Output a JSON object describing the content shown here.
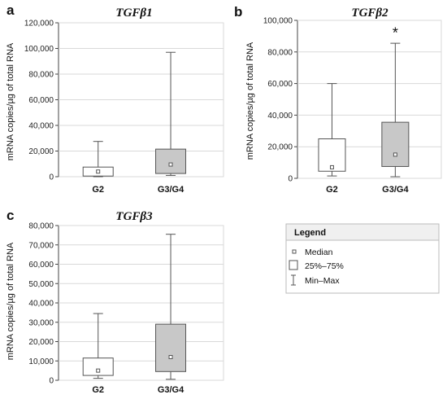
{
  "chart_data": [
    {
      "panel": "a",
      "type": "box",
      "title": "TGFβ1",
      "ylabel": "mRNA copies/µg of total RNA",
      "ylim": [
        0,
        120000
      ],
      "y_ticks": [
        "0",
        "20,000",
        "40,000",
        "60,000",
        "80,000",
        "100,000",
        "120,000"
      ],
      "y_tick_values": [
        0,
        20000,
        40000,
        60000,
        80000,
        100000,
        120000
      ],
      "categories": [
        "G2",
        "G3/G4"
      ],
      "boxes": [
        {
          "category": "G2",
          "min": 0,
          "q1": 500,
          "median": 4000,
          "q3": 7500,
          "max": 27500,
          "fill": "#ffffff"
        },
        {
          "category": "G3/G4",
          "min": 1000,
          "q1": 2500,
          "median": 9500,
          "q3": 21500,
          "max": 97000,
          "fill": "#c8c8c8"
        }
      ],
      "annotations": []
    },
    {
      "panel": "b",
      "type": "box",
      "title": "TGFβ2",
      "ylabel": "mRNA copies/µg of total RNA",
      "ylim": [
        0,
        100000
      ],
      "y_ticks": [
        "0",
        "20,000",
        "40,000",
        "60,000",
        "80,000",
        "100,000"
      ],
      "y_tick_values": [
        0,
        20000,
        40000,
        60000,
        80000,
        100000
      ],
      "categories": [
        "G2",
        "G3/G4"
      ],
      "boxes": [
        {
          "category": "G2",
          "min": 1500,
          "q1": 4500,
          "median": 7000,
          "q3": 25000,
          "max": 60000,
          "fill": "#ffffff"
        },
        {
          "category": "G3/G4",
          "min": 1000,
          "q1": 7500,
          "median": 15000,
          "q3": 35500,
          "max": 85500,
          "fill": "#c8c8c8"
        }
      ],
      "annotations": [
        {
          "text": "*",
          "category": "G3/G4",
          "y": 92000
        }
      ]
    },
    {
      "panel": "c",
      "type": "box",
      "title": "TGFβ3",
      "ylabel": "mRNA copies/µg of total RNA",
      "ylim": [
        0,
        80000
      ],
      "y_ticks": [
        "0",
        "10,000",
        "20,000",
        "30,000",
        "40,000",
        "50,000",
        "60,000",
        "70,000",
        "80,000"
      ],
      "y_tick_values": [
        0,
        10000,
        20000,
        30000,
        40000,
        50000,
        60000,
        70000,
        80000
      ],
      "categories": [
        "G2",
        "G3/G4"
      ],
      "boxes": [
        {
          "category": "G2",
          "min": 1000,
          "q1": 2500,
          "median": 5000,
          "q3": 11500,
          "max": 34500,
          "fill": "#ffffff"
        },
        {
          "category": "G3/G4",
          "min": 500,
          "q1": 4500,
          "median": 12000,
          "q3": 29000,
          "max": 75500,
          "fill": "#c8c8c8"
        }
      ],
      "annotations": []
    }
  ],
  "legend": {
    "title": "Legend",
    "items": [
      {
        "label": "Median",
        "icon": "small-square"
      },
      {
        "label": "25%–75%",
        "icon": "box"
      },
      {
        "label": "Min–Max",
        "icon": "whisker"
      }
    ]
  },
  "colors": {
    "box_outline": "#555555",
    "grid": "#d9d9d9",
    "axis": "#444444",
    "box_fill_g2": "#ffffff",
    "box_fill_g3g4": "#c8c8c8"
  }
}
